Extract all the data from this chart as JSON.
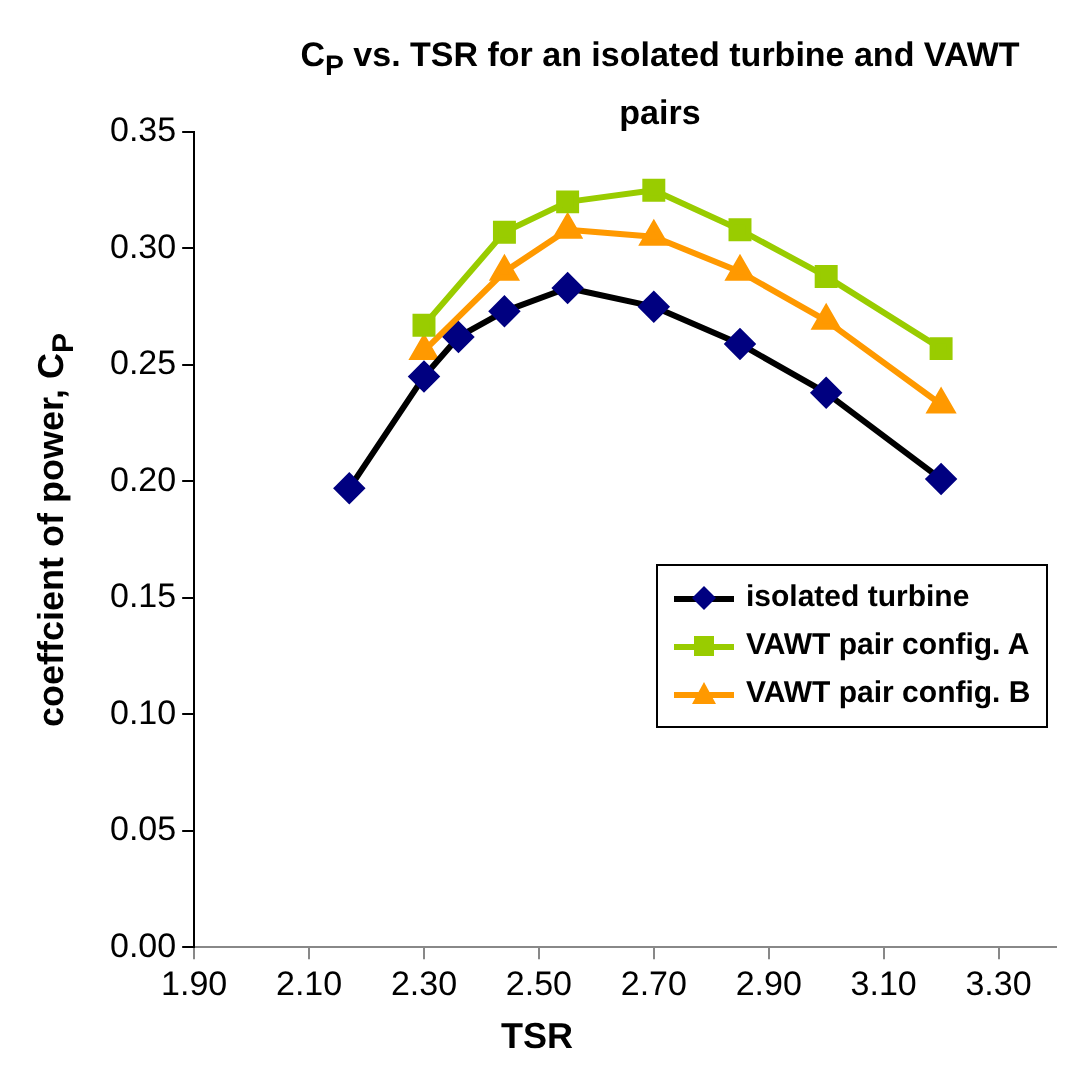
{
  "chart_data": {
    "type": "line",
    "title": "C$_{P}$ vs. TSR for an isolated turbine and VAWT pairs",
    "xlabel": "TSR",
    "ylabel": "coeffcient of power, C$_{P}$",
    "xlim": [
      1.9,
      3.4
    ],
    "xticks": [
      {
        "value": 1.9,
        "label": "1.90"
      },
      {
        "value": 2.1,
        "label": "2.10"
      },
      {
        "value": 2.3,
        "label": "2.30"
      },
      {
        "value": 2.5,
        "label": "2.50"
      },
      {
        "value": 2.7,
        "label": "2.70"
      },
      {
        "value": 2.9,
        "label": "2.90"
      },
      {
        "value": 3.1,
        "label": "3.10"
      },
      {
        "value": 3.3,
        "label": "3.30"
      }
    ],
    "ylim": [
      0,
      0.35
    ],
    "yticks": [
      {
        "value": 0,
        "label": "0.00"
      },
      {
        "value": 0.05,
        "label": "0.05"
      },
      {
        "value": 0.1,
        "label": "0.10"
      },
      {
        "value": 0.15,
        "label": "0.15"
      },
      {
        "value": 0.2,
        "label": "0.20"
      },
      {
        "value": 0.25,
        "label": "0.25"
      },
      {
        "value": 0.3,
        "label": "0.30"
      },
      {
        "value": 0.35,
        "label": "0.35"
      }
    ],
    "grid": false,
    "legend": "bottom right",
    "line_style": "solid",
    "series": [
      {
        "name": "isolated turbine",
        "color": "#000080",
        "marker": "diamond",
        "x": [
          2.17,
          2.3,
          2.36,
          2.44,
          2.55,
          2.7,
          2.85,
          3.0,
          3.2
        ],
        "values": [
          0.197,
          0.245,
          0.262,
          0.273,
          0.283,
          0.275,
          0.259,
          0.238,
          0.201
        ]
      },
      {
        "name": "VAWT pair config. A",
        "color": "#99cc00",
        "marker": "square",
        "x": [
          2.3,
          2.44,
          2.55,
          2.7,
          2.85,
          3.0,
          3.2
        ],
        "values": [
          0.267,
          0.307,
          0.32,
          0.325,
          0.308,
          0.288,
          0.257
        ]
      },
      {
        "name": "VAWT pair config. B",
        "color": "#ff9900",
        "marker": "triangle",
        "x": [
          2.3,
          2.44,
          2.55,
          2.7,
          2.85,
          3.0,
          3.2
        ],
        "values": [
          0.256,
          0.29,
          0.308,
          0.305,
          0.29,
          0.269,
          0.233
        ]
      }
    ]
  }
}
